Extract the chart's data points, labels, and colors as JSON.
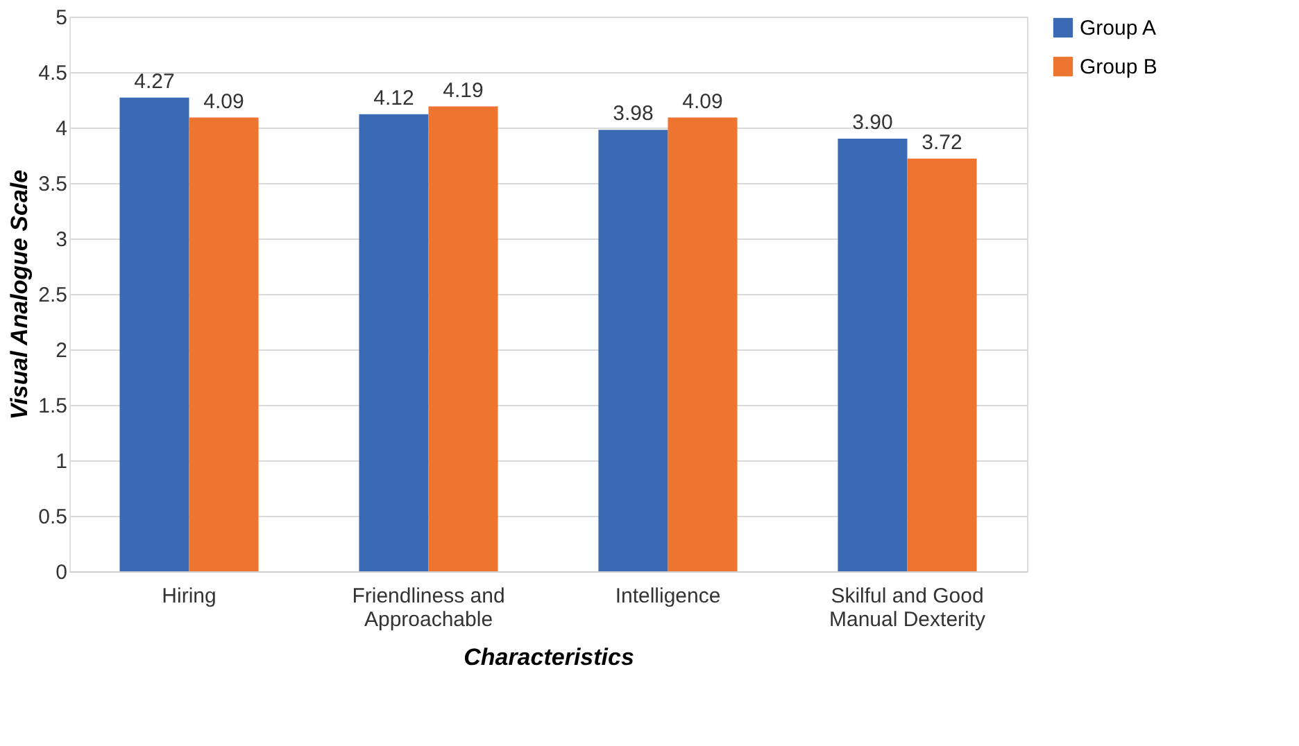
{
  "chart_data": {
    "type": "bar",
    "xlabel": "Characteristics",
    "ylabel": "Visual Analogue Scale",
    "categories": [
      "Hiring",
      "Friendliness and Approachable",
      "Intelligence",
      "Skilful and Good Manual Dexterity"
    ],
    "series": [
      {
        "name": "Group A",
        "color": "#3a6ab4",
        "values": [
          4.27,
          4.12,
          3.98,
          3.9
        ],
        "value_labels": [
          "4.27",
          "4.12",
          "3.98",
          "3.90"
        ]
      },
      {
        "name": "Group B",
        "color": "#ed7530",
        "values": [
          4.09,
          4.19,
          4.09,
          3.72
        ],
        "value_labels": [
          "4.09",
          "4.19",
          "4.09",
          "3.72"
        ]
      }
    ],
    "ylim": [
      0,
      5
    ],
    "yticks": [
      0,
      0.5,
      1,
      1.5,
      2,
      2.5,
      3,
      3.5,
      4,
      4.5,
      5
    ],
    "grid": "y",
    "legend": "right"
  }
}
